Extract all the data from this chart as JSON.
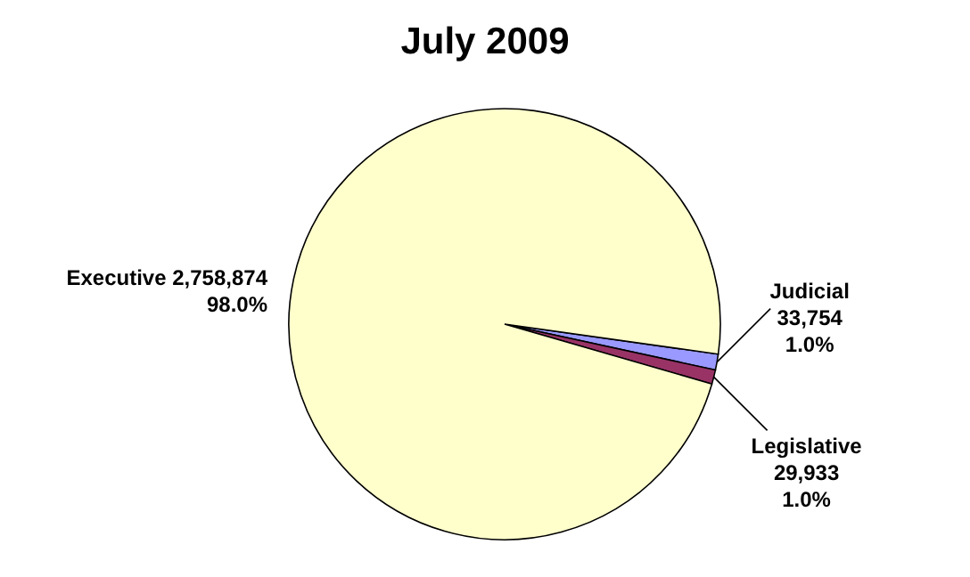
{
  "chart_data": {
    "type": "pie",
    "title": "July 2009",
    "categories": [
      "Judicial",
      "Legislative",
      "Executive"
    ],
    "values": [
      33754,
      29933,
      2758874
    ],
    "colors": [
      "#9999ff",
      "#993366",
      "#ffffcc"
    ],
    "value_labels": [
      "33,754",
      "29,933",
      "2,758,874"
    ],
    "annotations": [
      "1.0%",
      "1.0%",
      "98.0%"
    ]
  }
}
